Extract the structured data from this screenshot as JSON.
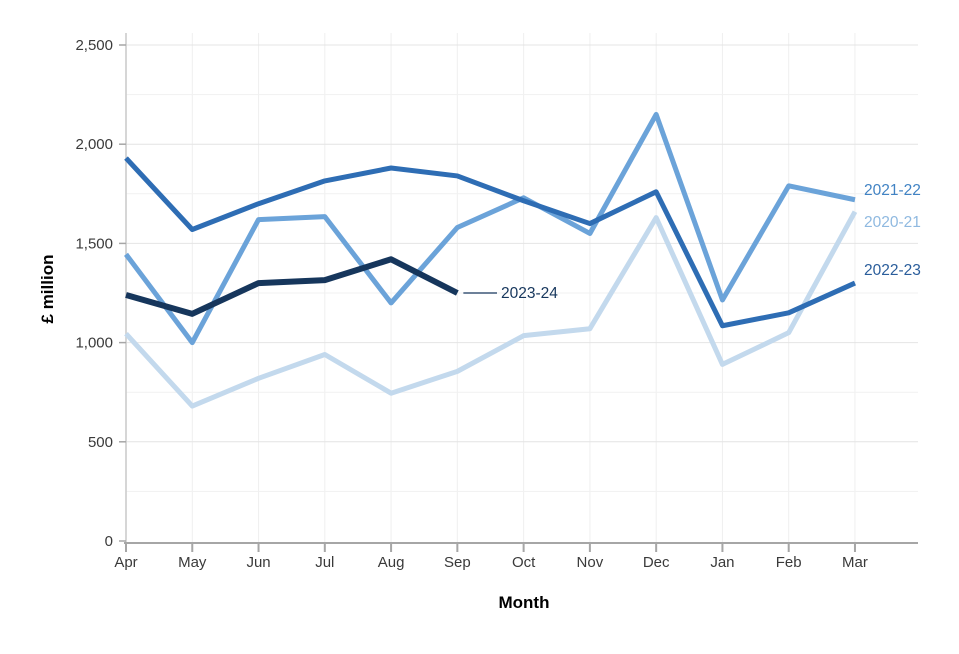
{
  "chart_data": {
    "type": "line",
    "title": "",
    "xlabel": "Month",
    "ylabel": "£ million",
    "x_categories": [
      "Apr",
      "May",
      "Jun",
      "Jul",
      "Aug",
      "Sep",
      "Oct",
      "Nov",
      "Dec",
      "Jan",
      "Feb",
      "Mar"
    ],
    "y_tick_values": [
      0,
      500,
      1000,
      1500,
      2000,
      2500
    ],
    "y_tick_labels": [
      "0",
      "500",
      "1,000",
      "1,500",
      "2,000",
      "2,500"
    ],
    "ylim": [
      0,
      2500
    ],
    "grid": {
      "horizontal_step": 250,
      "vertical": "one line per month",
      "color": "#ededed"
    },
    "legend_position": "direct line labels at right / mid-chart",
    "series": [
      {
        "name": "2020-21",
        "color": "#c3d9ed",
        "label_color": "#8fb9e0",
        "values": [
          1045,
          680,
          820,
          940,
          745,
          855,
          1035,
          1070,
          1630,
          890,
          1050,
          1660
        ]
      },
      {
        "name": "2021-22",
        "color": "#6ba3d9",
        "label_color": "#4183c4",
        "values": [
          1445,
          1000,
          1620,
          1635,
          1200,
          1580,
          1730,
          1550,
          2150,
          1215,
          1790,
          1720
        ]
      },
      {
        "name": "2022-23",
        "color": "#2e6db4",
        "label_color": "#2a5d9b",
        "values": [
          1930,
          1570,
          1700,
          1815,
          1880,
          1840,
          1715,
          1600,
          1760,
          1085,
          1150,
          1300
        ]
      },
      {
        "name": "2023-24",
        "color": "#16365c",
        "label_color": "#16365c",
        "values": [
          1240,
          1145,
          1300,
          1315,
          1420,
          1250,
          null,
          null,
          null,
          null,
          null,
          null
        ]
      }
    ]
  }
}
